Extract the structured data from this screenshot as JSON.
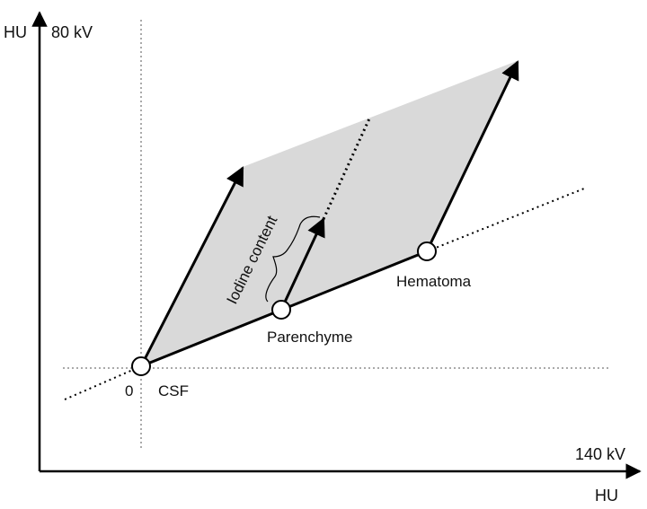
{
  "y_axis": {
    "unit": "HU",
    "energy": "80 kV"
  },
  "x_axis": {
    "unit": "HU",
    "energy": "140 kV"
  },
  "origin_label": "0",
  "points": {
    "csf": "CSF",
    "parenchyme": "Parenchyme",
    "hematoma": "Hematoma"
  },
  "bracket_label": "Iodine content",
  "colors": {
    "shading": "#d9d9d9",
    "lines": "#000000",
    "guides": "#555555"
  }
}
